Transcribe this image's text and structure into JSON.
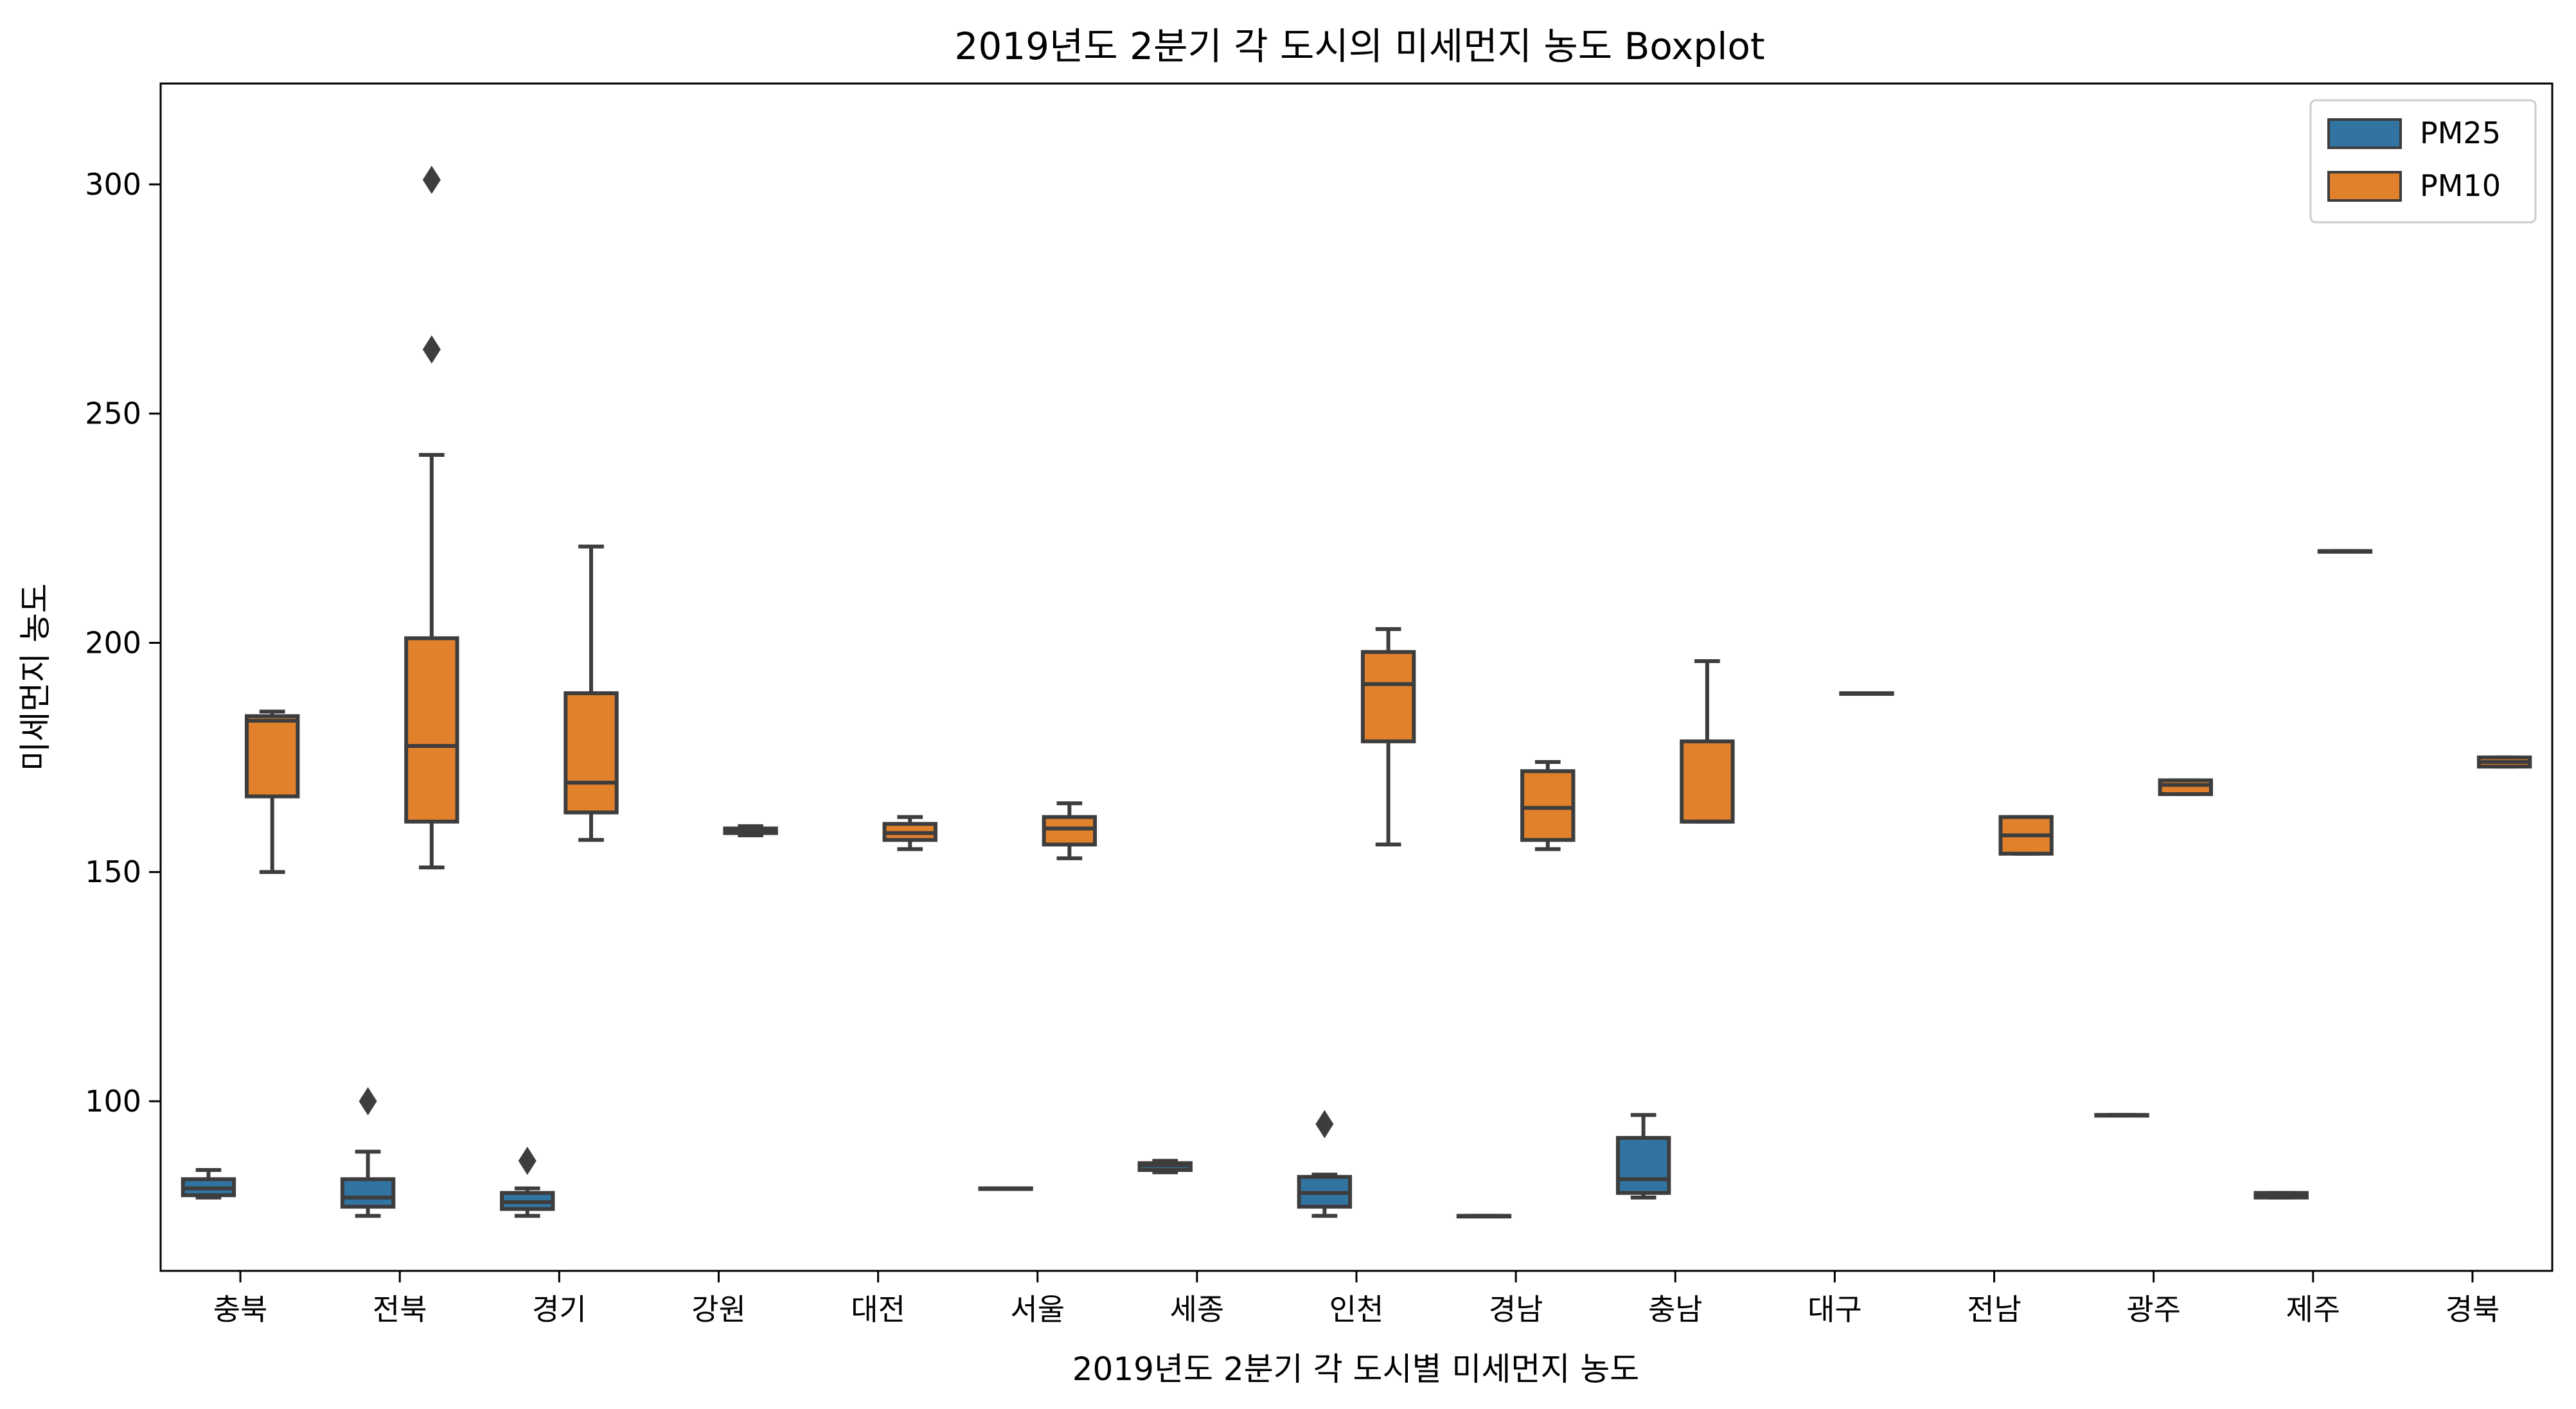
{
  "chart_data": {
    "type": "boxplot",
    "title": "2019년도 2분기 각 도시의 미세먼지 농도 Boxplot",
    "xlabel": "2019년도 2분기 각 도시별 미세먼지 농도",
    "ylabel": "미세먼지 농도",
    "ylim": [
      63,
      322
    ],
    "yticks": [
      100,
      150,
      200,
      250,
      300
    ],
    "grid": false,
    "legend_position": "top-right",
    "categories": [
      "충북",
      "전북",
      "경기",
      "강원",
      "대전",
      "서울",
      "세종",
      "인천",
      "경남",
      "충남",
      "대구",
      "전남",
      "광주",
      "제주",
      "경북"
    ],
    "series": [
      {
        "name": "PM25",
        "color": "#3274a1",
        "boxes": [
          {
            "min": 79,
            "q1": 79.5,
            "median": 81,
            "q3": 83,
            "max": 85,
            "outliers": []
          },
          {
            "min": 75,
            "q1": 77,
            "median": 79,
            "q3": 83,
            "max": 89,
            "outliers": [
              100
            ]
          },
          {
            "min": 75,
            "q1": 76.5,
            "median": 78,
            "q3": 80,
            "max": 81,
            "outliers": [
              87
            ]
          },
          null,
          null,
          {
            "min": 81,
            "q1": 81,
            "median": 81,
            "q3": 81,
            "max": 81,
            "outliers": []
          },
          {
            "min": 84.5,
            "q1": 85,
            "median": 86,
            "q3": 86.5,
            "max": 87,
            "outliers": []
          },
          {
            "min": 75,
            "q1": 77,
            "median": 80,
            "q3": 83.5,
            "max": 84,
            "outliers": [
              95
            ]
          },
          {
            "min": 75,
            "q1": 75,
            "median": 75,
            "q3": 75,
            "max": 75,
            "outliers": []
          },
          {
            "min": 79,
            "q1": 80,
            "median": 83,
            "q3": 92,
            "max": 97,
            "outliers": []
          },
          null,
          null,
          {
            "min": 97,
            "q1": 97,
            "median": 97,
            "q3": 97,
            "max": 97,
            "outliers": []
          },
          {
            "min": 79,
            "q1": 79,
            "median": 79.5,
            "q3": 80,
            "max": 80,
            "outliers": []
          },
          null
        ]
      },
      {
        "name": "PM10",
        "color": "#e1812c",
        "boxes": [
          {
            "min": 150,
            "q1": 166.5,
            "median": 183,
            "q3": 184,
            "max": 185,
            "outliers": []
          },
          {
            "min": 151,
            "q1": 161,
            "median": 177.5,
            "q3": 201,
            "max": 241,
            "outliers": [
              264,
              301
            ]
          },
          {
            "min": 157,
            "q1": 163,
            "median": 169.5,
            "q3": 189,
            "max": 221,
            "outliers": []
          },
          {
            "min": 158,
            "q1": 158.5,
            "median": 159,
            "q3": 159.5,
            "max": 160,
            "outliers": []
          },
          {
            "min": 155,
            "q1": 157,
            "median": 158.5,
            "q3": 160.5,
            "max": 162,
            "outliers": []
          },
          {
            "min": 153,
            "q1": 156,
            "median": 159.5,
            "q3": 162,
            "max": 165,
            "outliers": []
          },
          null,
          {
            "min": 156,
            "q1": 178.5,
            "median": 191,
            "q3": 198,
            "max": 203,
            "outliers": []
          },
          {
            "min": 155,
            "q1": 157,
            "median": 164,
            "q3": 172,
            "max": 174,
            "outliers": []
          },
          {
            "min": 161,
            "q1": 161,
            "median": 161,
            "q3": 178.5,
            "max": 196,
            "outliers": []
          },
          {
            "min": 189,
            "q1": 189,
            "median": 189,
            "q3": 189,
            "max": 189,
            "outliers": []
          },
          {
            "min": 154,
            "q1": 154,
            "median": 158,
            "q3": 162,
            "max": 162,
            "outliers": []
          },
          {
            "min": 167,
            "q1": 167,
            "median": 169,
            "q3": 170,
            "max": 170,
            "outliers": []
          },
          {
            "min": 220,
            "q1": 220,
            "median": 220,
            "q3": 220,
            "max": 220,
            "outliers": []
          },
          {
            "min": 173,
            "q1": 173,
            "median": 174,
            "q3": 175,
            "max": 175,
            "outliers": []
          }
        ]
      }
    ]
  }
}
